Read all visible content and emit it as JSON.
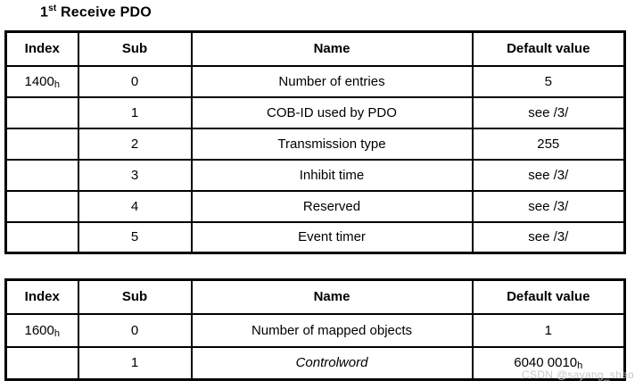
{
  "title": {
    "number": "1",
    "ordinal_suffix": "st",
    "rest": " Receive PDO"
  },
  "table1": {
    "headers": {
      "index": "Index",
      "sub": "Sub",
      "name": "Name",
      "default": "Default value"
    },
    "rows": [
      {
        "index_base": "1400",
        "index_sub": "h",
        "sub": "0",
        "name": "Number of entries",
        "default_base": "5",
        "default_sub": ""
      },
      {
        "index_base": "",
        "index_sub": "",
        "sub": "1",
        "name": "COB-ID used by PDO",
        "default_base": "see /3/",
        "default_sub": ""
      },
      {
        "index_base": "",
        "index_sub": "",
        "sub": "2",
        "name": "Transmission type",
        "default_base": "255",
        "default_sub": ""
      },
      {
        "index_base": "",
        "index_sub": "",
        "sub": "3",
        "name": "Inhibit time",
        "default_base": "see /3/",
        "default_sub": ""
      },
      {
        "index_base": "",
        "index_sub": "",
        "sub": "4",
        "name": "Reserved",
        "default_base": "see /3/",
        "default_sub": ""
      },
      {
        "index_base": "",
        "index_sub": "",
        "sub": "5",
        "name": "Event timer",
        "default_base": "see /3/",
        "default_sub": ""
      }
    ]
  },
  "table2": {
    "headers": {
      "index": "Index",
      "sub": "Sub",
      "name": "Name",
      "default": "Default value"
    },
    "rows": [
      {
        "index_base": "1600",
        "index_sub": "h",
        "sub": "0",
        "name": "Number of mapped objects",
        "default_base": "1",
        "default_sub": ""
      },
      {
        "index_base": "",
        "index_sub": "",
        "sub": "1",
        "name": "Controlword",
        "default_base": "6040 0010",
        "default_sub": "h"
      }
    ]
  },
  "watermark": {
    "text": "CSDN @sayang_shao",
    "color": "#c8c8c8"
  }
}
